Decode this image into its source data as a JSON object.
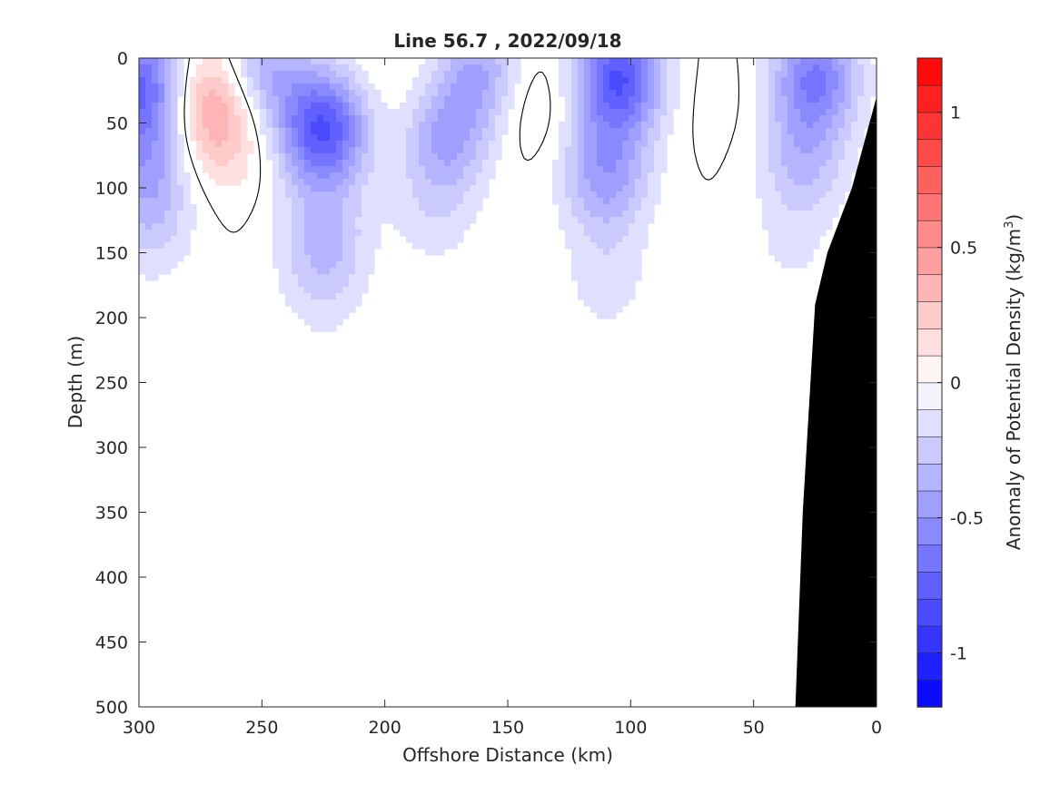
{
  "chart_data": {
    "type": "heatmap",
    "title": "Line 56.7 , 2022/09/18",
    "xlabel": "Offshore Distance (km)",
    "ylabel": "Depth (m)",
    "colorbar_label_main": "Anomaly of Potential Density (kg/m",
    "colorbar_label_sup": "3",
    "colorbar_label_close": ")",
    "xlim": [
      300,
      0
    ],
    "ylim": [
      500,
      0
    ],
    "x_reversed": true,
    "y_reversed": true,
    "x_ticks": [
      300,
      250,
      200,
      150,
      100,
      50,
      0
    ],
    "y_ticks": [
      0,
      50,
      100,
      150,
      200,
      250,
      300,
      350,
      400,
      450,
      500
    ],
    "color_range": [
      -1.2,
      1.2
    ],
    "color_ticks": [
      1,
      0.5,
      0,
      -0.5,
      -1
    ],
    "color_tick_labels": [
      "1",
      "0.5",
      "0",
      "-0.5",
      "-1"
    ],
    "color_levels": 24,
    "colormap": {
      "negative": "#0000ff",
      "zero": "#ffffff",
      "positive": "#ff0000"
    },
    "bathymetry_color": "#000000",
    "contour_level": 0,
    "field_features": [
      {
        "x": 300,
        "depth": 20,
        "anomaly": -0.7
      },
      {
        "x": 297,
        "depth": 80,
        "anomaly": -0.35
      },
      {
        "x": 295,
        "depth": 130,
        "anomaly": -0.2
      },
      {
        "x": 270,
        "depth": 30,
        "anomaly": 0.35
      },
      {
        "x": 265,
        "depth": 60,
        "anomaly": 0.2
      },
      {
        "x": 225,
        "depth": 55,
        "anomaly": -0.8
      },
      {
        "x": 225,
        "depth": 140,
        "anomaly": -0.3
      },
      {
        "x": 225,
        "depth": 185,
        "anomaly": -0.1
      },
      {
        "x": 250,
        "depth": 10,
        "anomaly": -0.4
      },
      {
        "x": 195,
        "depth": 25,
        "anomaly": 0.05
      },
      {
        "x": 175,
        "depth": 60,
        "anomaly": -0.4
      },
      {
        "x": 180,
        "depth": 120,
        "anomaly": -0.15
      },
      {
        "x": 160,
        "depth": 10,
        "anomaly": -0.4
      },
      {
        "x": 142,
        "depth": 30,
        "anomaly": 0.15
      },
      {
        "x": 105,
        "depth": 15,
        "anomaly": -0.8
      },
      {
        "x": 110,
        "depth": 90,
        "anomaly": -0.45
      },
      {
        "x": 110,
        "depth": 170,
        "anomaly": -0.15
      },
      {
        "x": 65,
        "depth": 30,
        "anomaly": 0.05
      },
      {
        "x": 25,
        "depth": 15,
        "anomaly": -0.6
      },
      {
        "x": 30,
        "depth": 80,
        "anomaly": -0.3
      },
      {
        "x": 35,
        "depth": 150,
        "anomaly": -0.1
      }
    ],
    "bathymetry_profile": [
      {
        "x": 0,
        "depth": 30
      },
      {
        "x": 10,
        "depth": 100
      },
      {
        "x": 20,
        "depth": 150
      },
      {
        "x": 25,
        "depth": 190
      },
      {
        "x": 30,
        "depth": 350
      },
      {
        "x": 33,
        "depth": 500
      }
    ]
  }
}
